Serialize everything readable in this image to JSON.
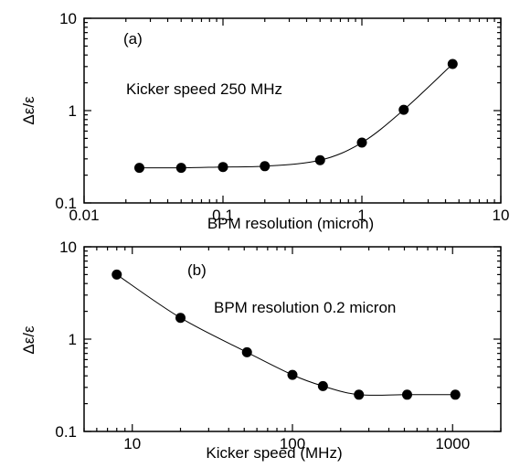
{
  "chart_data": [
    {
      "type": "line",
      "panel_label": "(a)",
      "annotation": "Kicker speed 250 MHz",
      "xlabel": "BPM  resolution  (micron)",
      "ylabel": "Δε/ε",
      "xscale": "log",
      "yscale": "log",
      "xlim": [
        0.01,
        10
      ],
      "ylim": [
        0.1,
        10
      ],
      "x_ticks": [
        0.01,
        0.1,
        1,
        10
      ],
      "x_tick_labels": [
        "0.01",
        "0.1",
        "1",
        "10"
      ],
      "y_ticks": [
        0.1,
        1,
        10
      ],
      "y_tick_labels": [
        "0.1",
        "1",
        "10"
      ],
      "grid": false,
      "series": [
        {
          "x": [
            0.025,
            0.05,
            0.1,
            0.2,
            0.5,
            1.0,
            2.0,
            4.5
          ],
          "y": [
            0.24,
            0.24,
            0.245,
            0.25,
            0.29,
            0.45,
            1.02,
            3.2
          ]
        }
      ]
    },
    {
      "type": "line",
      "panel_label": "(b)",
      "annotation": "BPM  resolution  0.2  micron",
      "xlabel": "Kicker speed (MHz)",
      "ylabel": "Δε/ε",
      "xscale": "log",
      "yscale": "log",
      "xlim": [
        5,
        2000
      ],
      "ylim": [
        0.1,
        10
      ],
      "x_ticks": [
        10,
        100,
        1000
      ],
      "x_tick_labels": [
        "10",
        "100",
        "1000"
      ],
      "y_ticks": [
        0.1,
        1,
        10
      ],
      "y_tick_labels": [
        "0.1",
        "1",
        "10"
      ],
      "grid": false,
      "series": [
        {
          "x": [
            8,
            20,
            52,
            100,
            155,
            260,
            520,
            1040
          ],
          "y": [
            5.0,
            1.7,
            0.72,
            0.41,
            0.31,
            0.25,
            0.25,
            0.25
          ]
        }
      ]
    }
  ]
}
